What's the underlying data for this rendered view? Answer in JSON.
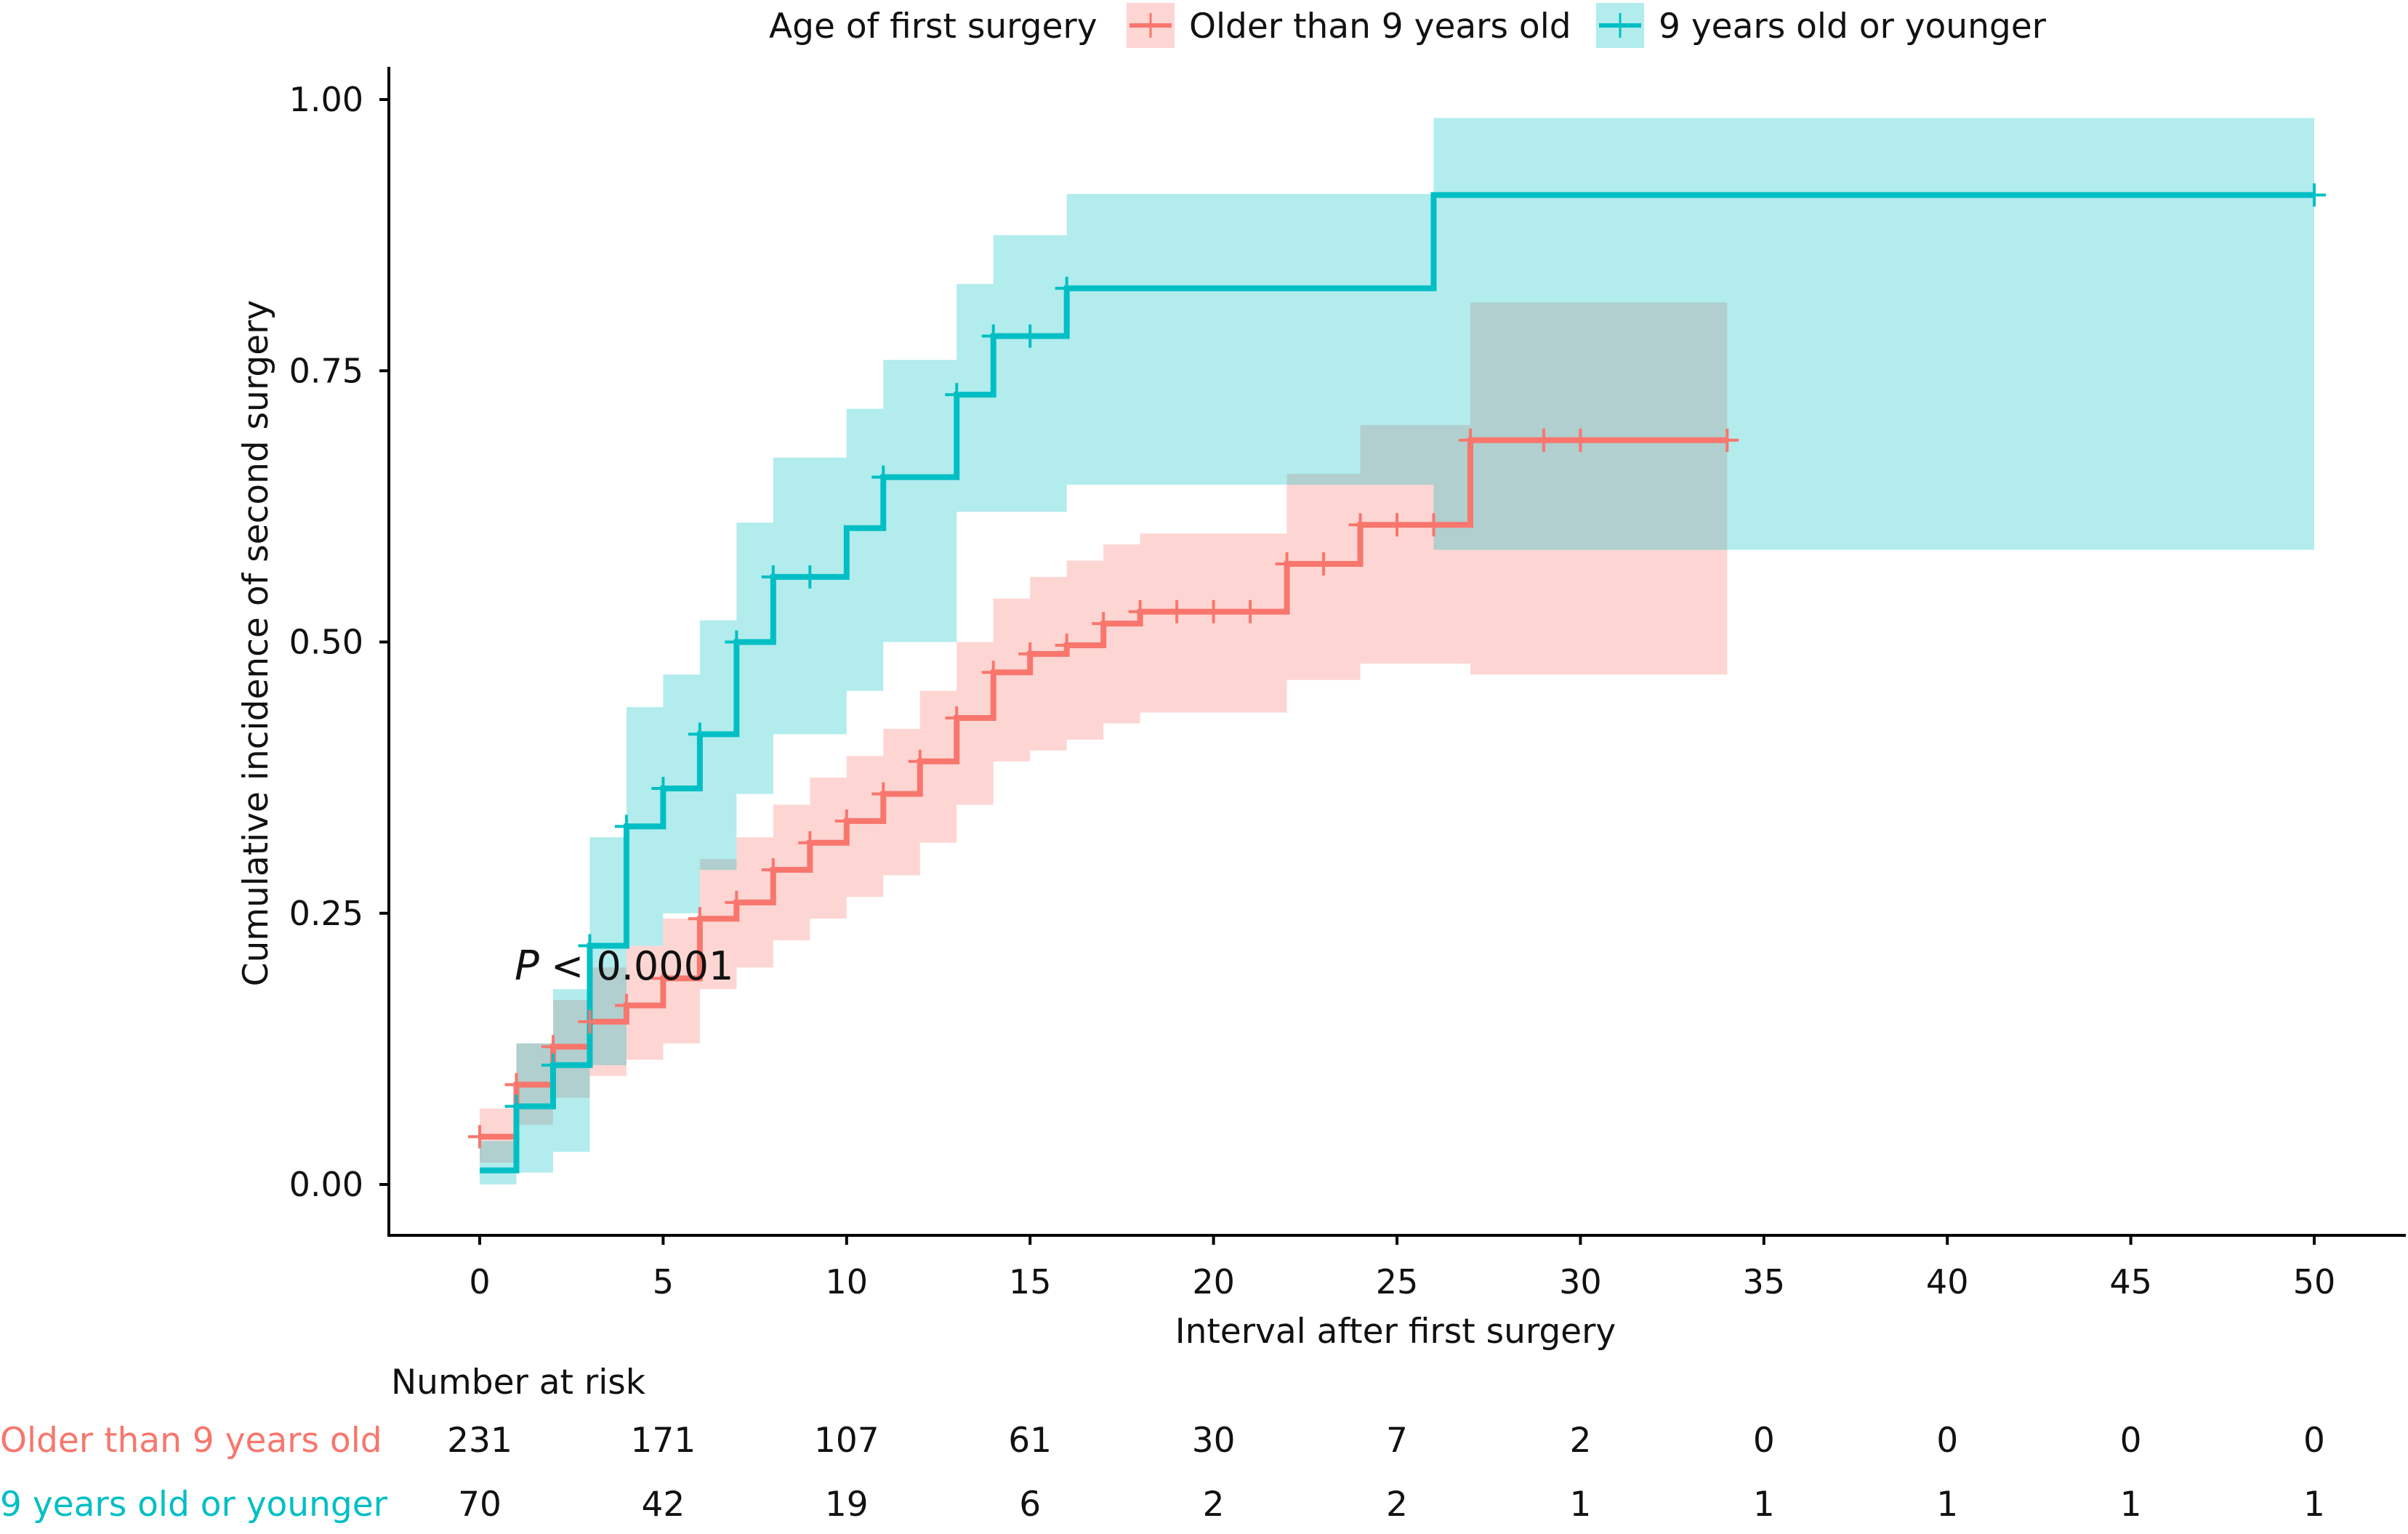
{
  "chart_data": {
    "type": "line",
    "subtype": "step",
    "xlabel": "Interval after first surgery",
    "ylabel": "Cumulative incidence of second surgery",
    "xlim": [
      0,
      50
    ],
    "ylim": [
      0,
      1
    ],
    "xticks": [
      "0",
      "5",
      "10",
      "15",
      "20",
      "25",
      "30",
      "35",
      "40",
      "45",
      "50"
    ],
    "yticks": [
      "0.00",
      "0.25",
      "0.50",
      "0.75",
      "1.00"
    ],
    "grid": false,
    "legend": {
      "title": "Age of first surgery",
      "placement": "top"
    },
    "annotation": {
      "p_italic": "P",
      "p_rest": "< 0.0001"
    },
    "series": [
      {
        "name": "Older than 9 years old",
        "color": "#F8766D",
        "end_time": 34,
        "steps": [
          {
            "t": 0,
            "est": 0.044,
            "lower": 0.02,
            "upper": 0.07
          },
          {
            "t": 1,
            "est": 0.092,
            "lower": 0.055,
            "upper": 0.13
          },
          {
            "t": 2,
            "est": 0.127,
            "lower": 0.08,
            "upper": 0.17
          },
          {
            "t": 3,
            "est": 0.15,
            "lower": 0.1,
            "upper": 0.2
          },
          {
            "t": 4,
            "est": 0.165,
            "lower": 0.115,
            "upper": 0.22
          },
          {
            "t": 5,
            "est": 0.19,
            "lower": 0.13,
            "upper": 0.245
          },
          {
            "t": 6,
            "est": 0.245,
            "lower": 0.18,
            "upper": 0.3
          },
          {
            "t": 7,
            "est": 0.26,
            "lower": 0.2,
            "upper": 0.32
          },
          {
            "t": 8,
            "est": 0.29,
            "lower": 0.225,
            "upper": 0.35
          },
          {
            "t": 9,
            "est": 0.315,
            "lower": 0.245,
            "upper": 0.375
          },
          {
            "t": 10,
            "est": 0.335,
            "lower": 0.265,
            "upper": 0.395
          },
          {
            "t": 11,
            "est": 0.36,
            "lower": 0.285,
            "upper": 0.42
          },
          {
            "t": 12,
            "est": 0.39,
            "lower": 0.315,
            "upper": 0.455
          },
          {
            "t": 13,
            "est": 0.43,
            "lower": 0.35,
            "upper": 0.5
          },
          {
            "t": 14,
            "est": 0.472,
            "lower": 0.39,
            "upper": 0.54
          },
          {
            "t": 15,
            "est": 0.489,
            "lower": 0.4,
            "upper": 0.56
          },
          {
            "t": 16,
            "est": 0.497,
            "lower": 0.41,
            "upper": 0.575
          },
          {
            "t": 17,
            "est": 0.517,
            "lower": 0.425,
            "upper": 0.59
          },
          {
            "t": 18,
            "est": 0.528,
            "lower": 0.435,
            "upper": 0.6
          },
          {
            "t": 22,
            "est": 0.572,
            "lower": 0.465,
            "upper": 0.655
          },
          {
            "t": 24,
            "est": 0.608,
            "lower": 0.48,
            "upper": 0.7
          },
          {
            "t": 27,
            "est": 0.686,
            "lower": 0.47,
            "upper": 0.813
          }
        ],
        "censored": [
          0,
          1,
          2,
          3,
          4,
          5,
          6,
          7,
          8,
          9,
          10,
          11,
          12,
          13,
          14,
          15,
          16,
          17,
          18,
          19,
          20,
          21,
          22,
          23,
          24,
          25,
          26,
          27,
          29,
          30,
          34
        ]
      },
      {
        "name": "9 years old or younger",
        "color": "#00BFC4",
        "end_time": 50,
        "steps": [
          {
            "t": 0,
            "est": 0.013,
            "lower": 0.0,
            "upper": 0.04
          },
          {
            "t": 1,
            "est": 0.072,
            "lower": 0.011,
            "upper": 0.13
          },
          {
            "t": 2,
            "est": 0.11,
            "lower": 0.03,
            "upper": 0.18
          },
          {
            "t": 3,
            "est": 0.22,
            "lower": 0.11,
            "upper": 0.32
          },
          {
            "t": 4,
            "est": 0.33,
            "lower": 0.22,
            "upper": 0.44
          },
          {
            "t": 5,
            "est": 0.365,
            "lower": 0.25,
            "upper": 0.47
          },
          {
            "t": 6,
            "est": 0.415,
            "lower": 0.29,
            "upper": 0.52
          },
          {
            "t": 7,
            "est": 0.5,
            "lower": 0.36,
            "upper": 0.61
          },
          {
            "t": 8,
            "est": 0.56,
            "lower": 0.415,
            "upper": 0.67
          },
          {
            "t": 10,
            "est": 0.605,
            "lower": 0.455,
            "upper": 0.715
          },
          {
            "t": 11,
            "est": 0.652,
            "lower": 0.5,
            "upper": 0.76
          },
          {
            "t": 13,
            "est": 0.728,
            "lower": 0.62,
            "upper": 0.83
          },
          {
            "t": 14,
            "est": 0.782,
            "lower": 0.62,
            "upper": 0.875
          },
          {
            "t": 16,
            "est": 0.826,
            "lower": 0.645,
            "upper": 0.913
          },
          {
            "t": 26,
            "est": 0.912,
            "lower": 0.585,
            "upper": 0.983
          }
        ],
        "censored": [
          1,
          2,
          3,
          4,
          5,
          6,
          7,
          8,
          9,
          11,
          13,
          14,
          15,
          16,
          50
        ]
      }
    ],
    "risk_table": {
      "title": "Number at risk",
      "times": [
        0,
        5,
        10,
        15,
        20,
        25,
        30,
        35,
        40,
        45,
        50
      ],
      "rows": [
        {
          "label": "Older than 9 years old",
          "color": "#F8766D",
          "values": [
            "231",
            "171",
            "107",
            "61",
            "30",
            "7",
            "2",
            "0",
            "0",
            "0",
            "0"
          ]
        },
        {
          "label": "9 years old or younger",
          "color": "#00BFC4",
          "values": [
            "70",
            "42",
            "19",
            "6",
            "2",
            "2",
            "1",
            "1",
            "1",
            "1",
            "1"
          ]
        }
      ]
    }
  }
}
